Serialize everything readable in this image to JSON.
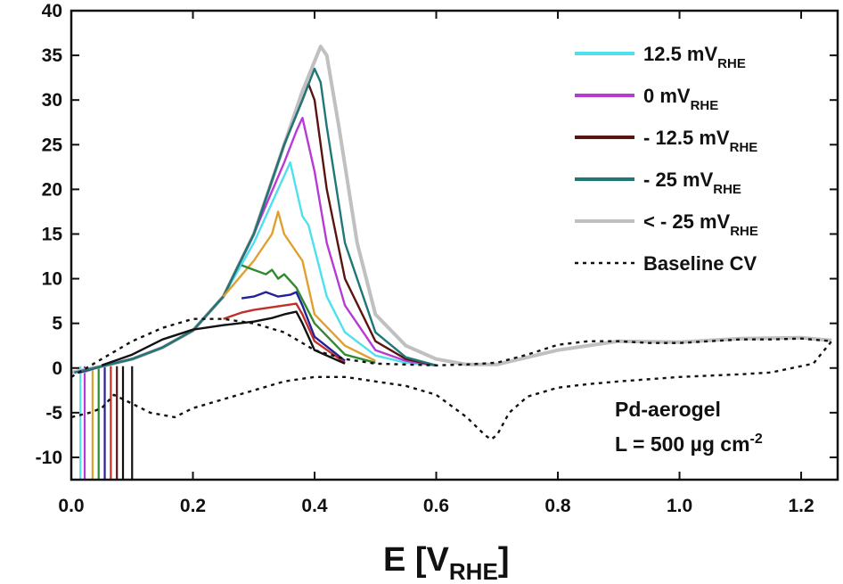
{
  "chart_data": {
    "type": "line",
    "xlabel_main": "E [V",
    "xlabel_sub": "RHE",
    "xlabel_end": "]",
    "ylabel": "",
    "xlim": [
      0.0,
      1.26
    ],
    "ylim": [
      -12.5,
      40
    ],
    "xticks": [
      "0.0",
      "0.2",
      "0.4",
      "0.6",
      "0.8",
      "1.0",
      "1.2"
    ],
    "yticks": [
      "-10",
      "-5",
      "0",
      "5",
      "10",
      "15",
      "20",
      "25",
      "30",
      "35",
      "40"
    ],
    "legend_position": "top-right",
    "legend": [
      {
        "main": "12.5 mV",
        "sub": "RHE",
        "color": "#4fe0ee",
        "style": "solid"
      },
      {
        "main": "0 mV",
        "sub": "RHE",
        "color": "#b83ad6",
        "style": "solid"
      },
      {
        "main": "- 12.5 mV",
        "sub": "RHE",
        "color": "#5a1410",
        "style": "solid"
      },
      {
        "main": "- 25 mV",
        "sub": "RHE",
        "color": "#1f7777",
        "style": "solid"
      },
      {
        "main": "< - 25 mV",
        "sub": "RHE",
        "color": "#c0c0c0",
        "style": "solid"
      },
      {
        "main": "Baseline CV",
        "sub": "",
        "color": "#111111",
        "style": "dotted"
      }
    ],
    "annotation": {
      "line1": "Pd-aerogel",
      "line2_main": "L = 500 µg cm",
      "line2_sup": "-2"
    },
    "series": [
      {
        "name": "12.5 mV",
        "color": "#4fe0ee",
        "x": [
          0.02,
          0.05,
          0.1,
          0.15,
          0.2,
          0.25,
          0.3,
          0.33,
          0.36,
          0.37,
          0.38,
          0.39,
          0.42,
          0.45,
          0.5,
          0.55,
          0.6
        ],
        "y": [
          -0.5,
          0.2,
          1.0,
          2.3,
          4.2,
          8,
          14,
          18.5,
          23,
          20,
          17,
          16,
          8,
          4,
          1.4,
          0.6,
          0.3
        ]
      },
      {
        "name": "0 mV",
        "color": "#b83ad6",
        "x": [
          0.015,
          0.05,
          0.1,
          0.15,
          0.2,
          0.25,
          0.3,
          0.35,
          0.37,
          0.38,
          0.4,
          0.42,
          0.45,
          0.5,
          0.55,
          0.6
        ],
        "y": [
          -0.5,
          0.2,
          1.0,
          2.3,
          4.2,
          8,
          15,
          23,
          26.5,
          28,
          22,
          14,
          7,
          2,
          0.8,
          0.3
        ]
      },
      {
        "name": "- 12.5 mV",
        "color": "#5a1410",
        "x": [
          0.01,
          0.05,
          0.1,
          0.15,
          0.2,
          0.25,
          0.3,
          0.35,
          0.38,
          0.39,
          0.4,
          0.42,
          0.45,
          0.5,
          0.55,
          0.6
        ],
        "y": [
          -0.5,
          0.2,
          1.0,
          2.3,
          4.2,
          8,
          15,
          25,
          30,
          31.8,
          30,
          20,
          10,
          3,
          1,
          0.3
        ]
      },
      {
        "name": "- 25 mV",
        "color": "#1f7777",
        "x": [
          0.005,
          0.05,
          0.1,
          0.15,
          0.2,
          0.25,
          0.3,
          0.35,
          0.38,
          0.4,
          0.41,
          0.42,
          0.45,
          0.5,
          0.55,
          0.6
        ],
        "y": [
          -0.5,
          0.2,
          1.0,
          2.3,
          4.2,
          8,
          15,
          25,
          30,
          33.5,
          32,
          27,
          14,
          4,
          1.2,
          0.3
        ]
      },
      {
        "name": "< - 25 mV",
        "color": "#c0c0c0",
        "x": [
          0.0,
          0.05,
          0.1,
          0.15,
          0.2,
          0.25,
          0.3,
          0.35,
          0.38,
          0.41,
          0.42,
          0.44,
          0.47,
          0.5,
          0.55,
          0.6,
          0.65,
          0.7,
          0.8,
          0.9,
          1.0,
          1.1,
          1.2,
          1.25
        ],
        "y": [
          -0.5,
          0.2,
          1.0,
          2.3,
          4.2,
          8,
          15,
          25,
          31,
          36,
          35,
          27,
          14,
          6,
          2.5,
          1,
          0.4,
          0.4,
          2,
          3,
          2.9,
          3.3,
          3.4,
          3.1
        ]
      },
      {
        "name": "",
        "color": "#e0a030",
        "x": [
          0.25,
          0.3,
          0.33,
          0.34,
          0.35,
          0.36,
          0.37,
          0.38,
          0.4,
          0.45,
          0.5
        ],
        "y": [
          8,
          12,
          15,
          17.5,
          15,
          14,
          13,
          12,
          6,
          2.5,
          0.8
        ]
      },
      {
        "name": "",
        "color": "#2e8b2e",
        "x": [
          0.28,
          0.3,
          0.32,
          0.33,
          0.34,
          0.35,
          0.37,
          0.4,
          0.45,
          0.5
        ],
        "y": [
          11.5,
          11,
          10.5,
          11,
          10,
          10.5,
          9,
          5,
          1.5,
          0.6
        ]
      },
      {
        "name": "",
        "color": "#22229a",
        "x": [
          0.28,
          0.3,
          0.32,
          0.34,
          0.36,
          0.37,
          0.38,
          0.4,
          0.45
        ],
        "y": [
          7.8,
          8,
          8.5,
          8,
          8.2,
          8.5,
          7,
          3.5,
          0.8
        ]
      },
      {
        "name": "",
        "color": "#c0302a",
        "x": [
          0.25,
          0.28,
          0.3,
          0.33,
          0.35,
          0.37,
          0.38,
          0.4,
          0.45
        ],
        "y": [
          5.5,
          6.2,
          6.5,
          6.8,
          7,
          7.2,
          6,
          3,
          0.6
        ]
      },
      {
        "name": "",
        "color": "#111111",
        "x": [
          0.05,
          0.1,
          0.15,
          0.2,
          0.25,
          0.3,
          0.33,
          0.35,
          0.37,
          0.38,
          0.4,
          0.45
        ],
        "y": [
          0.3,
          1.5,
          3.2,
          4.3,
          4.8,
          5.2,
          5.6,
          6,
          6.3,
          5,
          2,
          0.5
        ]
      },
      {
        "name": "Baseline CV",
        "color": "#111111",
        "dashed": true,
        "x": [
          0.0,
          0.05,
          0.1,
          0.15,
          0.2,
          0.25,
          0.3,
          0.35,
          0.4,
          0.45,
          0.5,
          0.55,
          0.6,
          0.65,
          0.7,
          0.75,
          0.8,
          0.85,
          0.9,
          0.95,
          1.0,
          1.05,
          1.1,
          1.15,
          1.2,
          1.25,
          1.22,
          1.15,
          1.1,
          1.0,
          0.9,
          0.85,
          0.8,
          0.75,
          0.72,
          0.7,
          0.69,
          0.68,
          0.65,
          0.6,
          0.55,
          0.5,
          0.45,
          0.4,
          0.35,
          0.3,
          0.25,
          0.2,
          0.17,
          0.13,
          0.1,
          0.07,
          0.05,
          0.03,
          0.0
        ],
        "y": [
          -1,
          1,
          3,
          4.5,
          5.5,
          5.5,
          5,
          4,
          2,
          1,
          0.5,
          0.4,
          0.3,
          0.4,
          0.6,
          1.5,
          2.6,
          3,
          3,
          2.8,
          2.8,
          3,
          3.2,
          3.2,
          3.3,
          3.0,
          0.5,
          -0.5,
          -0.7,
          -1,
          -1.5,
          -1.8,
          -2.2,
          -3.2,
          -5,
          -7.5,
          -8,
          -7.5,
          -5.5,
          -3,
          -2,
          -1.5,
          -1,
          -1,
          -1.5,
          -2.5,
          -3.5,
          -4.5,
          -5.5,
          -5,
          -4,
          -3,
          -4.5,
          -5,
          -5.5
        ]
      }
    ],
    "steep_start_lines": [
      {
        "color": "#4fe0ee",
        "x": 0.015
      },
      {
        "color": "#b83ad6",
        "x": 0.022
      },
      {
        "color": "#e0a030",
        "x": 0.035
      },
      {
        "color": "#2e8b2e",
        "x": 0.045
      },
      {
        "color": "#22229a",
        "x": 0.055
      },
      {
        "color": "#c0302a",
        "x": 0.065
      },
      {
        "color": "#5a1410",
        "x": 0.075
      },
      {
        "color": "#111111",
        "x": 0.085
      },
      {
        "color": "#111111",
        "x": 0.1
      }
    ]
  }
}
